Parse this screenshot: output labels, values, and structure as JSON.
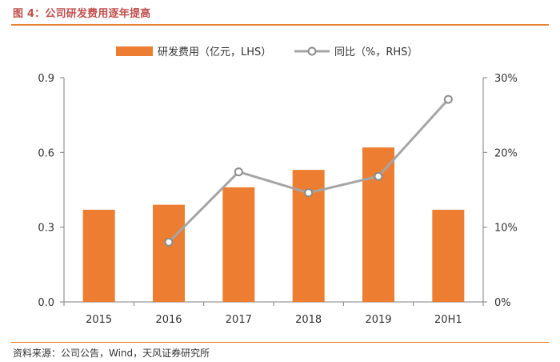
{
  "figure": {
    "title": "图 4：公司研发费用逐年提高",
    "source": "资料来源：公司公告，Wind，天风证券研究所"
  },
  "colors": {
    "accent": "#e8822f",
    "bar": "#ed7d31",
    "line": "#a5a5a5",
    "title": "#c0504d"
  },
  "chart_data": {
    "type": "bar",
    "categories": [
      "2015",
      "2016",
      "2017",
      "2018",
      "2019",
      "20H1"
    ],
    "series": [
      {
        "name": "研发费用（亿元，LHS）",
        "type": "bar",
        "axis": "left",
        "values": [
          0.37,
          0.39,
          0.46,
          0.53,
          0.62,
          0.37
        ]
      },
      {
        "name": "同比（%，RHS）",
        "type": "line",
        "axis": "right",
        "values": [
          null,
          8.0,
          17.4,
          14.6,
          16.8,
          27.1
        ]
      }
    ],
    "yleft": {
      "min": 0,
      "max": 0.9,
      "ticks": [
        "0.0",
        "0.3",
        "0.6",
        "0.9"
      ]
    },
    "yright": {
      "min": 0,
      "max": 30,
      "ticks": [
        "0%",
        "10%",
        "20%",
        "30%"
      ]
    },
    "legend_position": "top",
    "grid": false
  }
}
